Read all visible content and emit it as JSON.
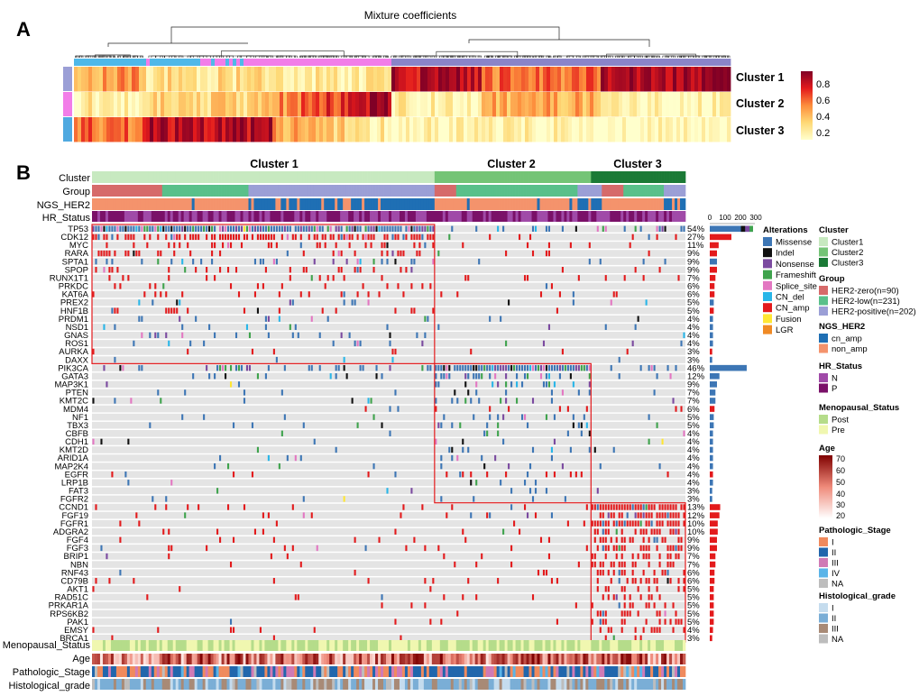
{
  "panel_a": {
    "label": "A",
    "title": "Mixture coefficients",
    "row_labels": [
      "Cluster 1",
      "Cluster 2",
      "Cluster 3"
    ],
    "colorbar_ticks": [
      "0.8",
      "0.6",
      "0.4",
      "0.2"
    ]
  },
  "panel_b": {
    "label": "B",
    "cluster_titles": [
      "Cluster 1",
      "Cluster 2",
      "Cluster 3"
    ],
    "top_tracks": [
      "Cluster",
      "Group",
      "NGS_HER2",
      "HR_Status"
    ],
    "bottom_tracks": [
      "Menopausal_Status",
      "Age",
      "Pathologic_Stage",
      "Histological_grade"
    ],
    "bar_axis_ticks": [
      "0",
      "100",
      "200",
      "300"
    ],
    "legend": {
      "alterations": {
        "title": "Alterations",
        "items": [
          {
            "label": "Missense",
            "color": "#3d76b5"
          },
          {
            "label": "Indel",
            "color": "#111111"
          },
          {
            "label": "Nonsense",
            "color": "#7b4aa0"
          },
          {
            "label": "Frameshift",
            "color": "#3fa34d"
          },
          {
            "label": "Splice_site",
            "color": "#e377c2"
          },
          {
            "label": "CN_del",
            "color": "#29b6e8"
          },
          {
            "label": "CN_amp",
            "color": "#e31a1c"
          },
          {
            "label": "Fusion",
            "color": "#ffe633"
          },
          {
            "label": "LGR",
            "color": "#f08a24"
          }
        ]
      },
      "cluster": {
        "title": "Cluster",
        "items": [
          {
            "label": "Cluster1",
            "color": "#c7e9c0"
          },
          {
            "label": "Cluster2",
            "color": "#74c476"
          },
          {
            "label": "Cluster3",
            "color": "#1b7a36"
          }
        ]
      },
      "group": {
        "title": "Group",
        "items": [
          {
            "label": "HER2-zero(n=90)",
            "color": "#d66a6a"
          },
          {
            "label": "HER2-low(n=231)",
            "color": "#59c08a"
          },
          {
            "label": "HER2-positive(n=202)",
            "color": "#9b9fd6"
          }
        ]
      },
      "ngs_her2": {
        "title": "NGS_HER2",
        "items": [
          {
            "label": "cn_amp",
            "color": "#1f6fb4"
          },
          {
            "label": "non_amp",
            "color": "#f4936c"
          }
        ]
      },
      "hr_status": {
        "title": "HR_Status",
        "items": [
          {
            "label": "N",
            "color": "#a04aa8"
          },
          {
            "label": "P",
            "color": "#7a1068"
          }
        ]
      },
      "menopausal": {
        "title": "Menopausal_Status",
        "items": [
          {
            "label": "Post",
            "color": "#b5dc8a"
          },
          {
            "label": "Pre",
            "color": "#f0f7b0"
          }
        ]
      },
      "age": {
        "title": "Age",
        "ticks": [
          "70",
          "60",
          "50",
          "40",
          "30",
          "20"
        ]
      },
      "pathologic_stage": {
        "title": "Pathologic_Stage",
        "items": [
          {
            "label": "I",
            "color": "#f08a5d"
          },
          {
            "label": "II",
            "color": "#2166ac"
          },
          {
            "label": "III",
            "color": "#d07ab5"
          },
          {
            "label": "IV",
            "color": "#5ab4e8"
          },
          {
            "label": "NA",
            "color": "#bdbdbd"
          }
        ]
      },
      "histological_grade": {
        "title": "Histological_grade",
        "items": [
          {
            "label": "I",
            "color": "#c5dcee"
          },
          {
            "label": "II",
            "color": "#7aaed6"
          },
          {
            "label": "III",
            "color": "#a88a76"
          },
          {
            "label": "NA",
            "color": "#bdbdbd"
          }
        ]
      }
    }
  },
  "chart_data": {
    "type": "heatmap",
    "title": "Mixture coefficients",
    "colorbar_range": [
      0.1,
      0.9
    ],
    "clusters": [
      "Cluster 1",
      "Cluster 2",
      "Cluster 3"
    ],
    "oncoprint": {
      "genes": [
        {
          "gene": "TP53",
          "pct": "54%",
          "count": 282,
          "block": 1
        },
        {
          "gene": "CDK12",
          "pct": "27%",
          "count": 141,
          "block": 1
        },
        {
          "gene": "MYC",
          "pct": "11%",
          "count": 58,
          "block": 1
        },
        {
          "gene": "RARA",
          "pct": "9%",
          "count": 47,
          "block": 1
        },
        {
          "gene": "SPTA1",
          "pct": "9%",
          "count": 47,
          "block": 1
        },
        {
          "gene": "SPOP",
          "pct": "9%",
          "count": 47,
          "block": 1
        },
        {
          "gene": "RUNX1T1",
          "pct": "7%",
          "count": 37,
          "block": 1
        },
        {
          "gene": "PRKDC",
          "pct": "6%",
          "count": 31,
          "block": 1
        },
        {
          "gene": "KAT6A",
          "pct": "6%",
          "count": 31,
          "block": 1
        },
        {
          "gene": "PREX2",
          "pct": "5%",
          "count": 26,
          "block": 1
        },
        {
          "gene": "HNF1B",
          "pct": "5%",
          "count": 26,
          "block": 1
        },
        {
          "gene": "PRDM1",
          "pct": "4%",
          "count": 21,
          "block": 1
        },
        {
          "gene": "NSD1",
          "pct": "4%",
          "count": 21,
          "block": 1
        },
        {
          "gene": "GNAS",
          "pct": "4%",
          "count": 21,
          "block": 1
        },
        {
          "gene": "ROS1",
          "pct": "4%",
          "count": 21,
          "block": 1
        },
        {
          "gene": "AURKA",
          "pct": "3%",
          "count": 16,
          "block": 1
        },
        {
          "gene": "DAXX",
          "pct": "3%",
          "count": 16,
          "block": 1
        },
        {
          "gene": "PIK3CA",
          "pct": "46%",
          "count": 241,
          "block": 2
        },
        {
          "gene": "GATA3",
          "pct": "12%",
          "count": 63,
          "block": 2
        },
        {
          "gene": "MAP3K1",
          "pct": "9%",
          "count": 47,
          "block": 2
        },
        {
          "gene": "PTEN",
          "pct": "7%",
          "count": 37,
          "block": 2
        },
        {
          "gene": "KMT2C",
          "pct": "7%",
          "count": 37,
          "block": 2
        },
        {
          "gene": "MDM4",
          "pct": "6%",
          "count": 31,
          "block": 2
        },
        {
          "gene": "NF1",
          "pct": "5%",
          "count": 26,
          "block": 2
        },
        {
          "gene": "TBX3",
          "pct": "5%",
          "count": 26,
          "block": 2
        },
        {
          "gene": "CBFB",
          "pct": "4%",
          "count": 21,
          "block": 2
        },
        {
          "gene": "CDH1",
          "pct": "4%",
          "count": 21,
          "block": 2
        },
        {
          "gene": "KMT2D",
          "pct": "4%",
          "count": 21,
          "block": 2
        },
        {
          "gene": "ARID1A",
          "pct": "4%",
          "count": 21,
          "block": 2
        },
        {
          "gene": "MAP2K4",
          "pct": "4%",
          "count": 21,
          "block": 2
        },
        {
          "gene": "EGFR",
          "pct": "4%",
          "count": 21,
          "block": 2
        },
        {
          "gene": "LRP1B",
          "pct": "4%",
          "count": 21,
          "block": 2
        },
        {
          "gene": "FAT3",
          "pct": "3%",
          "count": 16,
          "block": 2
        },
        {
          "gene": "FGFR2",
          "pct": "3%",
          "count": 16,
          "block": 2
        },
        {
          "gene": "CCND1",
          "pct": "13%",
          "count": 68,
          "block": 3
        },
        {
          "gene": "FGF19",
          "pct": "12%",
          "count": 63,
          "block": 3
        },
        {
          "gene": "FGFR1",
          "pct": "10%",
          "count": 52,
          "block": 3
        },
        {
          "gene": "ADGRA2",
          "pct": "10%",
          "count": 52,
          "block": 3
        },
        {
          "gene": "FGF4",
          "pct": "9%",
          "count": 47,
          "block": 3
        },
        {
          "gene": "FGF3",
          "pct": "9%",
          "count": 47,
          "block": 3
        },
        {
          "gene": "BRIP1",
          "pct": "7%",
          "count": 37,
          "block": 3
        },
        {
          "gene": "NBN",
          "pct": "7%",
          "count": 37,
          "block": 3
        },
        {
          "gene": "RNF43",
          "pct": "6%",
          "count": 31,
          "block": 3
        },
        {
          "gene": "CD79B",
          "pct": "6%",
          "count": 31,
          "block": 3
        },
        {
          "gene": "AKT1",
          "pct": "5%",
          "count": 26,
          "block": 3
        },
        {
          "gene": "RAD51C",
          "pct": "5%",
          "count": 26,
          "block": 3
        },
        {
          "gene": "PRKAR1A",
          "pct": "5%",
          "count": 26,
          "block": 3
        },
        {
          "gene": "RPS6KB2",
          "pct": "5%",
          "count": 26,
          "block": 3
        },
        {
          "gene": "PAK1",
          "pct": "5%",
          "count": 26,
          "block": 3
        },
        {
          "gene": "EMSY",
          "pct": "4%",
          "count": 21,
          "block": 3
        },
        {
          "gene": "BRCA1",
          "pct": "3%",
          "count": 16,
          "block": 3
        }
      ]
    },
    "bar_axis_range": [
      0,
      300
    ]
  }
}
